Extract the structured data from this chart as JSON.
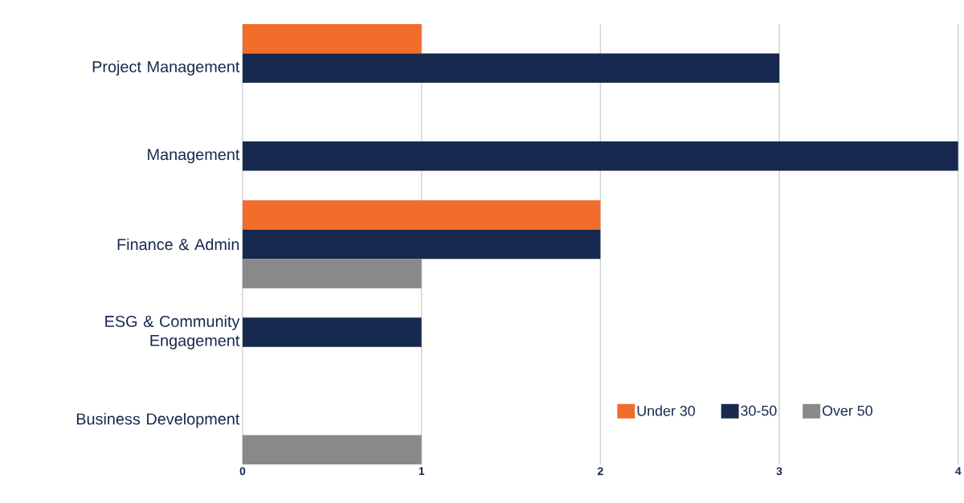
{
  "chart_data": {
    "type": "bar",
    "orientation": "horizontal",
    "categories": [
      "Project Management",
      "Management",
      "Finance & Admin",
      "ESG & Community Engagement",
      "Business Development"
    ],
    "series": [
      {
        "name": "Under 30",
        "color": "#f26c2b",
        "values": [
          1,
          null,
          2,
          null,
          null
        ]
      },
      {
        "name": "30-50",
        "color": "#17294f",
        "values": [
          3,
          4,
          2,
          1,
          null
        ]
      },
      {
        "name": "Over 50",
        "color": "#878a88",
        "values": [
          null,
          null,
          1,
          null,
          1
        ]
      }
    ],
    "xlim": [
      0,
      4
    ],
    "xticks": [
      0,
      1,
      2,
      3,
      4
    ],
    "grid": "x",
    "legend": "bottom right"
  }
}
